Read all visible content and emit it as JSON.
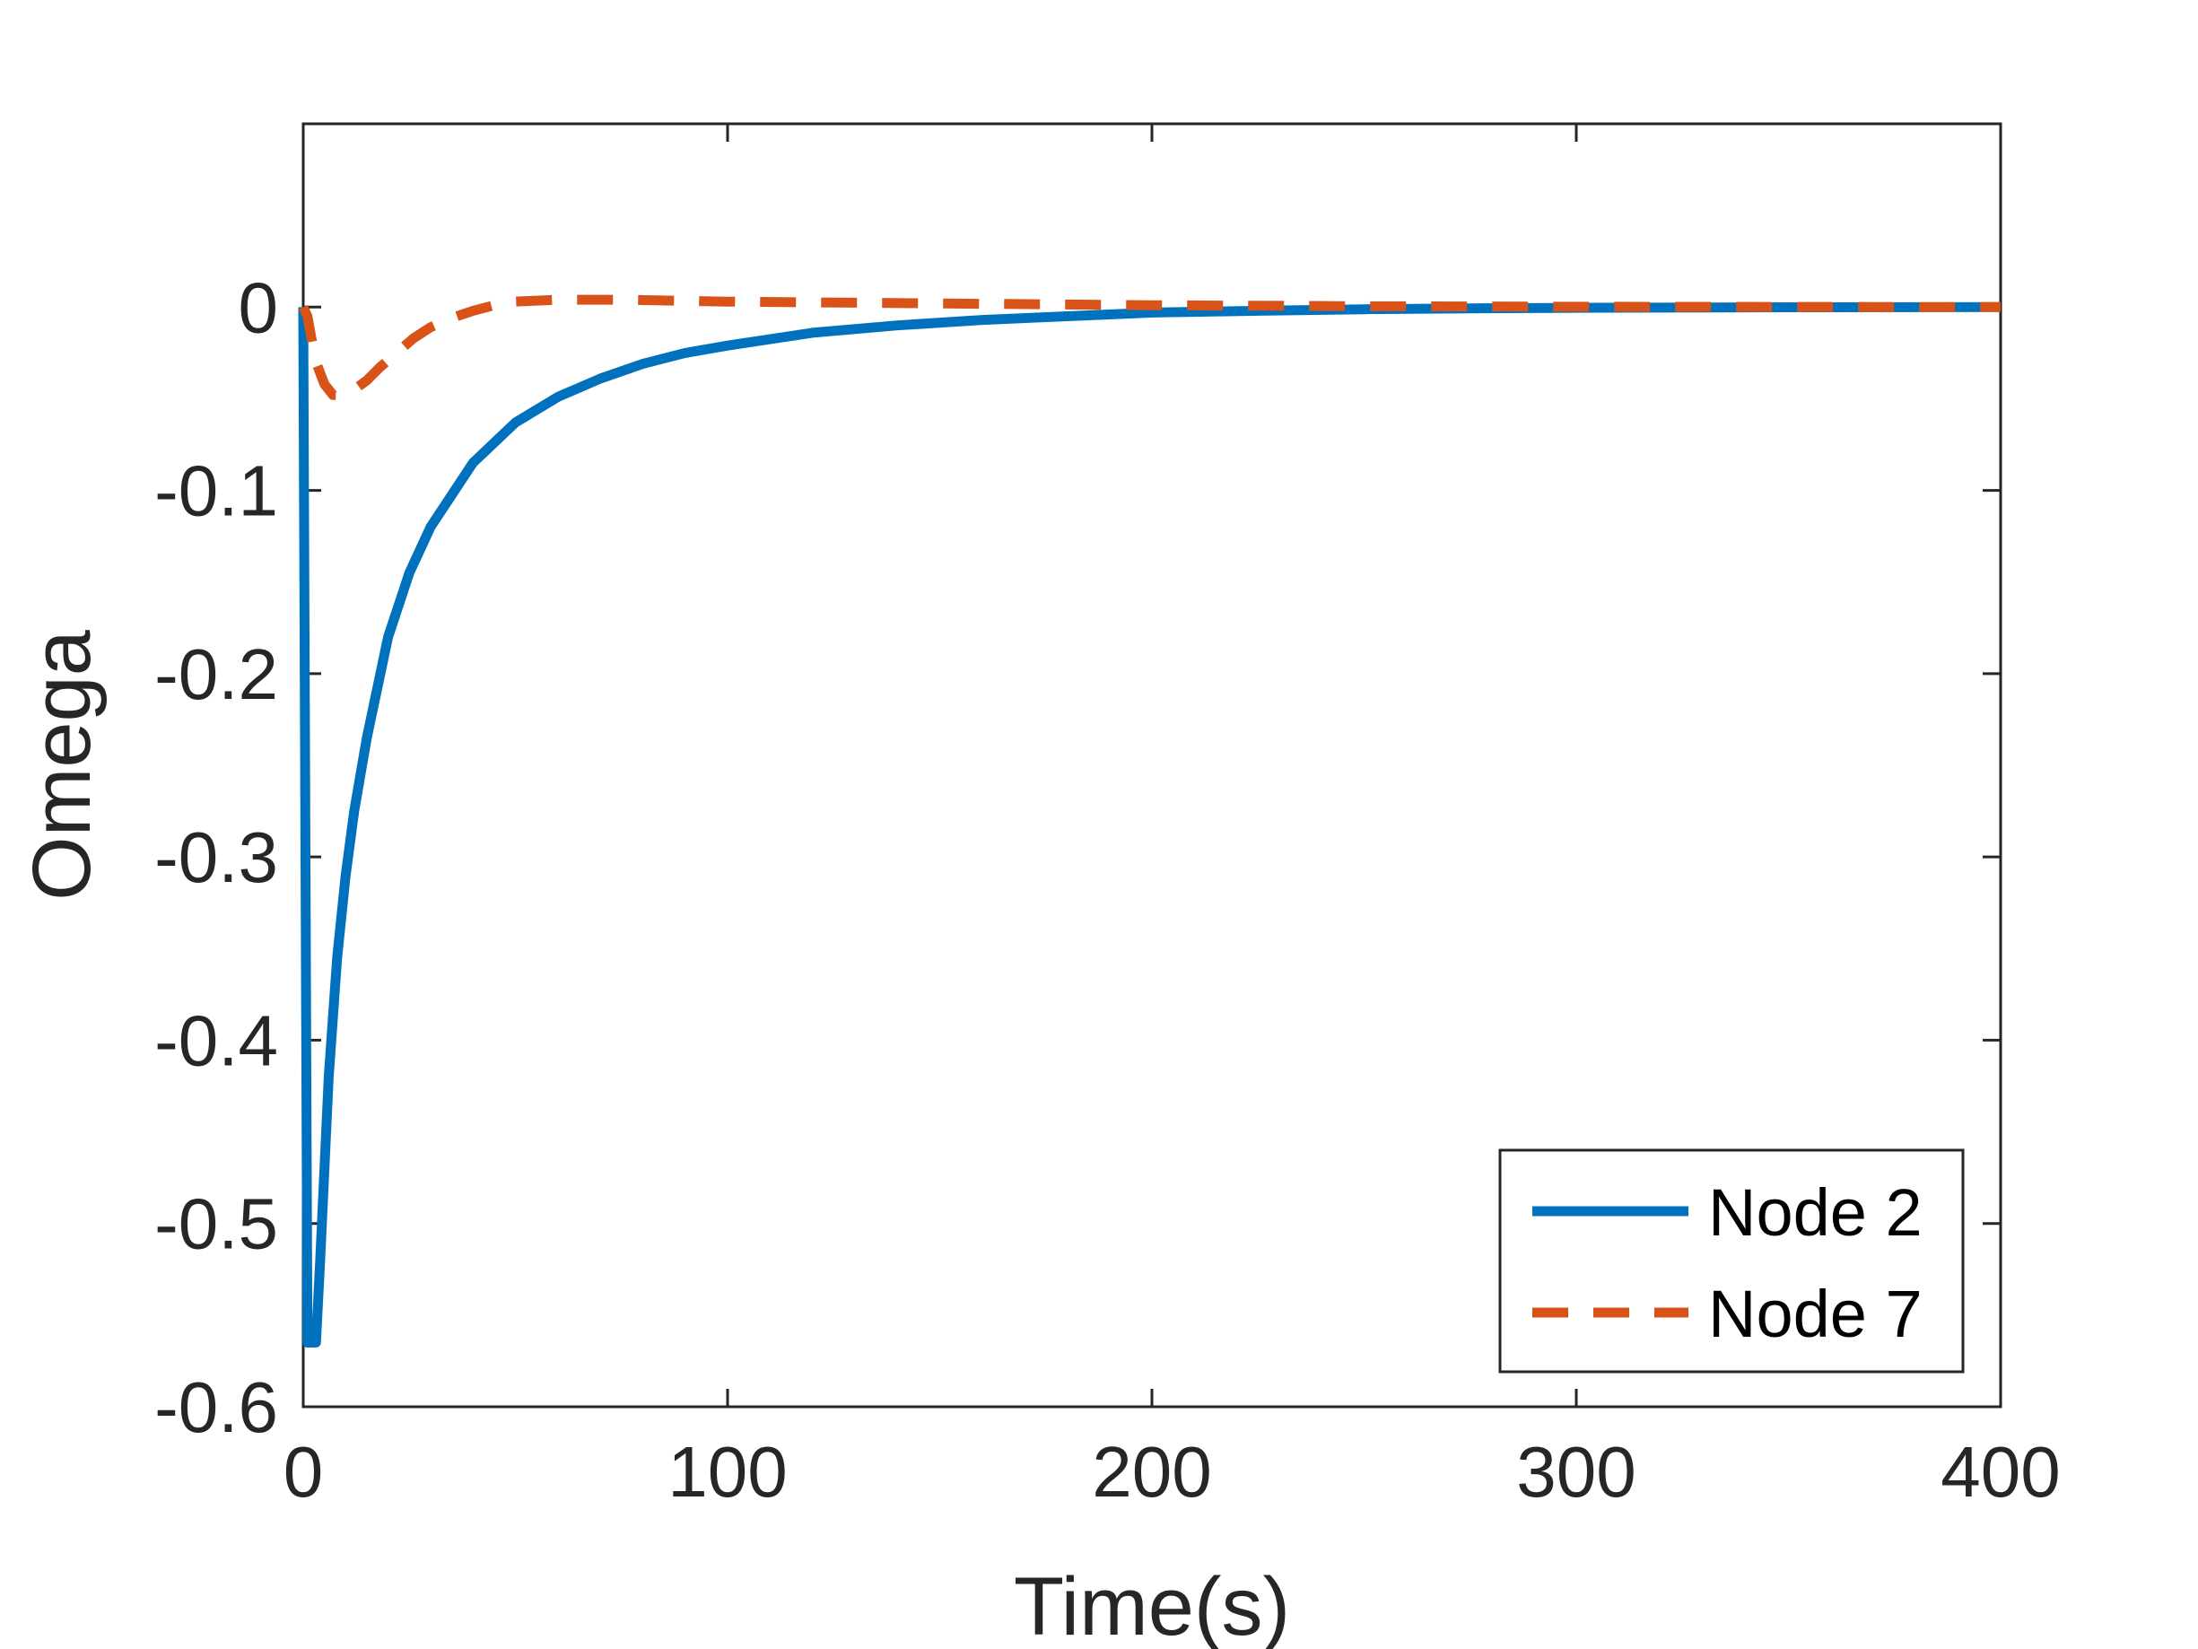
{
  "chart_data": {
    "type": "line",
    "xlabel": "Time(s)",
    "ylabel": "Omega",
    "xlim": [
      0,
      400
    ],
    "ylim": [
      -0.6,
      0.1
    ],
    "xticks": [
      0,
      100,
      200,
      300,
      400
    ],
    "xtick_labels": [
      "0",
      "100",
      "200",
      "300",
      "400"
    ],
    "yticks": [
      -0.6,
      -0.5,
      -0.4,
      -0.3,
      -0.2,
      -0.1,
      0
    ],
    "ytick_labels": [
      "-0.6",
      "-0.5",
      "-0.4",
      "-0.3",
      "-0.2",
      "-0.1",
      "0"
    ],
    "grid": false,
    "legend_position": "bottom-right",
    "series": [
      {
        "name": "Node 2",
        "color": "#0072BD",
        "style": "solid",
        "x": [
          0,
          1,
          2,
          3,
          4,
          6,
          8,
          10,
          12,
          15,
          20,
          25,
          30,
          40,
          50,
          60,
          70,
          80,
          90,
          100,
          120,
          140,
          160,
          180,
          200,
          225,
          250,
          275,
          300,
          350,
          400
        ],
        "y": [
          0,
          -0.565,
          -0.565,
          -0.565,
          -0.52,
          -0.42,
          -0.355,
          -0.31,
          -0.275,
          -0.235,
          -0.18,
          -0.145,
          -0.12,
          -0.085,
          -0.063,
          -0.049,
          -0.039,
          -0.031,
          -0.025,
          -0.021,
          -0.014,
          -0.01,
          -0.007,
          -0.005,
          -0.003,
          -0.002,
          -0.0012,
          -0.0007,
          -0.0004,
          -0.0001,
          0
        ]
      },
      {
        "name": "Node 7",
        "color": "#D95319",
        "style": "dashed",
        "x": [
          0,
          1,
          2,
          3,
          5,
          7,
          9,
          12,
          15,
          18,
          22,
          26,
          30,
          35,
          40,
          45,
          50,
          60,
          75,
          100,
          150,
          200,
          250,
          300,
          350,
          400
        ],
        "y": [
          0,
          -0.005,
          -0.018,
          -0.03,
          -0.042,
          -0.048,
          -0.048,
          -0.045,
          -0.04,
          -0.033,
          -0.025,
          -0.017,
          -0.011,
          -0.006,
          -0.002,
          0.001,
          0.003,
          0.004,
          0.004,
          0.003,
          0.002,
          0.001,
          0.0005,
          0.0002,
          0.0001,
          0
        ]
      }
    ]
  }
}
